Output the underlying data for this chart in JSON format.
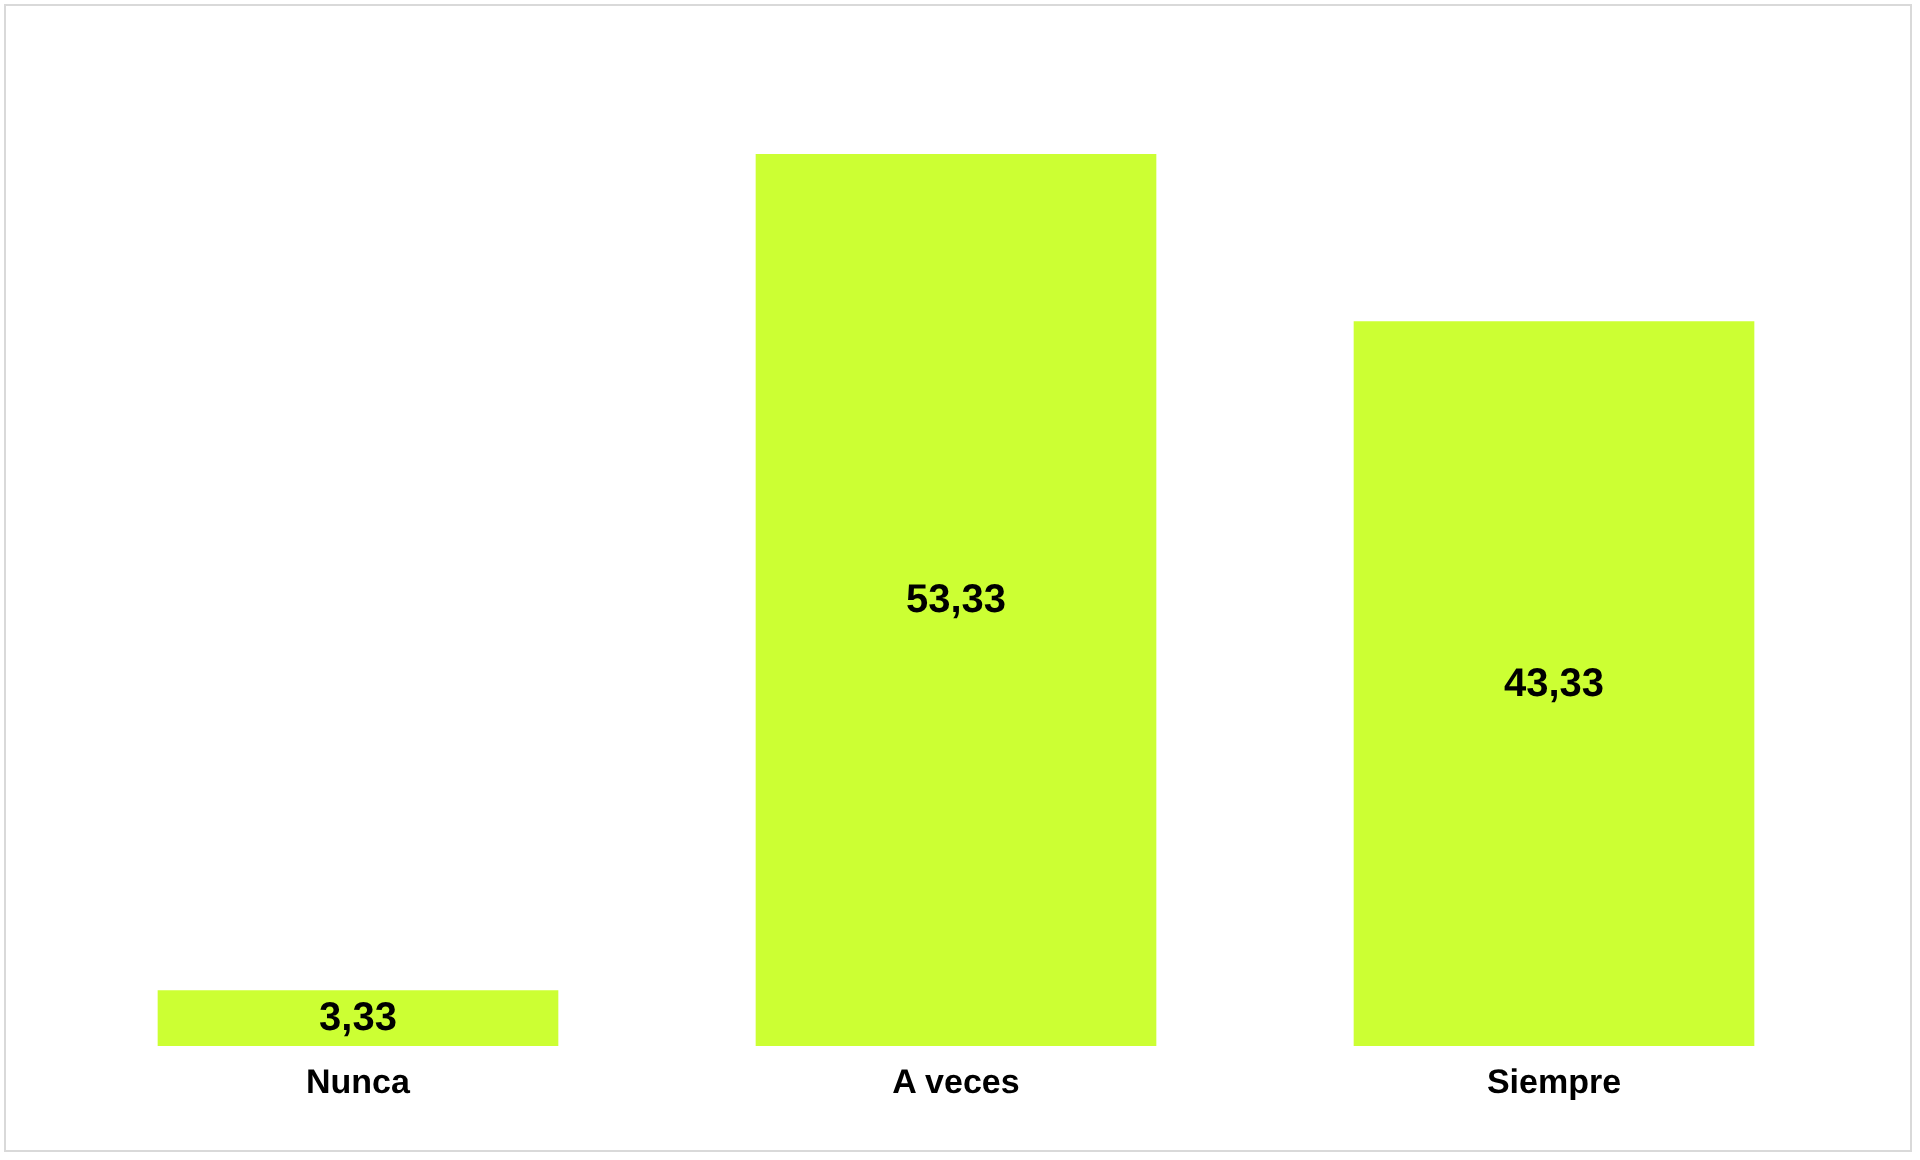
{
  "chart_data": {
    "type": "bar",
    "categories": [
      "Nunca",
      "A veces",
      "Siempre"
    ],
    "values": [
      3.33,
      53.33,
      43.33
    ],
    "value_labels": [
      "3,33",
      "53,33",
      "43,33"
    ],
    "color": "#ccff33"
  }
}
